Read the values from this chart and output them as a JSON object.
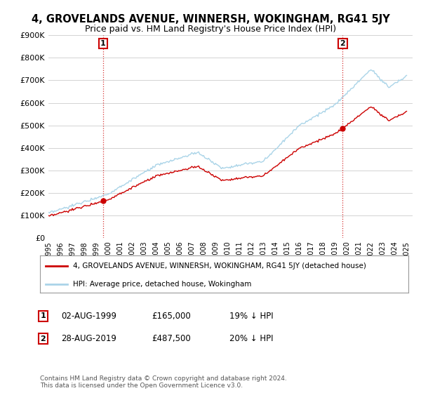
{
  "title": "4, GROVELANDS AVENUE, WINNERSH, WOKINGHAM, RG41 5JY",
  "subtitle": "Price paid vs. HM Land Registry's House Price Index (HPI)",
  "ylim": [
    0,
    900000
  ],
  "yticks": [
    0,
    100000,
    200000,
    300000,
    400000,
    500000,
    600000,
    700000,
    800000,
    900000
  ],
  "ytick_labels": [
    "£0",
    "£100K",
    "£200K",
    "£300K",
    "£400K",
    "£500K",
    "£600K",
    "£700K",
    "£800K",
    "£900K"
  ],
  "hpi_color": "#aad4e8",
  "price_color": "#cc0000",
  "t1": 1999.58,
  "t2": 2019.65,
  "price1": 165000,
  "price2": 487500,
  "legend_line1": "4, GROVELANDS AVENUE, WINNERSH, WOKINGHAM, RG41 5JY (detached house)",
  "legend_line2": "HPI: Average price, detached house, Wokingham",
  "row1_label": "1",
  "row1_date": "02-AUG-1999",
  "row1_price": "£165,000",
  "row1_pct": "19% ↓ HPI",
  "row2_label": "2",
  "row2_date": "28-AUG-2019",
  "row2_price": "£487,500",
  "row2_pct": "20% ↓ HPI",
  "footnote": "Contains HM Land Registry data © Crown copyright and database right 2024.\nThis data is licensed under the Open Government Licence v3.0.",
  "background_color": "#ffffff",
  "grid_color": "#cccccc",
  "xmin": 1995,
  "xmax": 2025.5
}
